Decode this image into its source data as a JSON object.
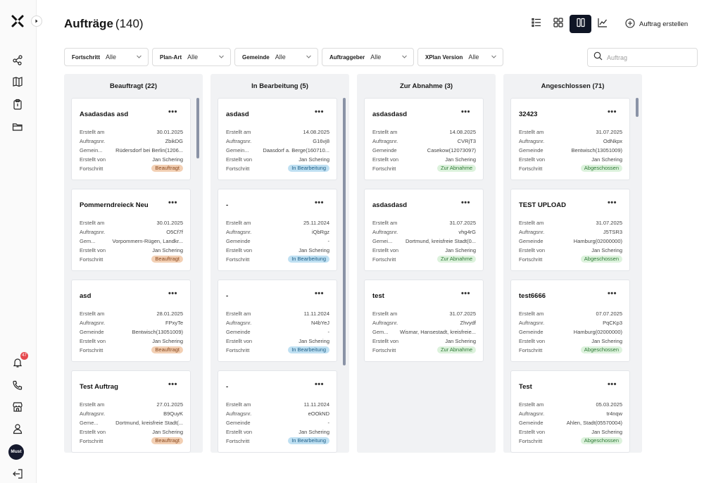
{
  "app": {
    "avatar_initials": "Must",
    "notification_count": "47"
  },
  "header": {
    "title": "Aufträge",
    "count": "(140)",
    "create_label": "Auftrag erstellen"
  },
  "search": {
    "placeholder": "Auftrag"
  },
  "filters": [
    {
      "label": "Fortschritt",
      "value": "Alle"
    },
    {
      "label": "Plan-Art",
      "value": "Alle"
    },
    {
      "label": "Gemeinde",
      "value": "Alle"
    },
    {
      "label": "Auftraggeber",
      "value": "Alle"
    },
    {
      "label": "XPlan Version",
      "value": "Alle"
    }
  ],
  "field_labels": {
    "created_at": "Erstellt am",
    "order_no": "Auftragsnr.",
    "municipality": "Gemeinde",
    "municipality_short1": "Gemein...",
    "municipality_short2": "Gem...",
    "created_by": "Erstellt von",
    "progress": "Fortschritt"
  },
  "columns": [
    {
      "title": "Beauftragt (22)",
      "cards": [
        {
          "title": "Asadasdas asd",
          "created_at": "30.01.2025",
          "order_no": "ZbikDG",
          "municipality_label": "Gemein...",
          "municipality": "Rüdersdorf bei Berlin(1206...",
          "created_by": "Jan Schering",
          "status": "Beauftragt"
        },
        {
          "title": "Pommerndreieck Neu",
          "created_at": "30.01.2025",
          "order_no": "O5Cf7f",
          "municipality_label": "Gem...",
          "municipality": "Vorpommern-Rügen, Landkr...",
          "created_by": "Jan Schering",
          "status": "Beauftragt"
        },
        {
          "title": "asd",
          "created_at": "28.01.2025",
          "order_no": "FPxyTe",
          "municipality_label": "Gemeinde",
          "municipality": "Bentwisch(13051009)",
          "created_by": "Jan Schering",
          "status": "Beauftragt"
        },
        {
          "title": "Test Auftrag",
          "created_at": "27.01.2025",
          "order_no": "B9QuyK",
          "municipality_label": "Geme...",
          "municipality": "Dortmund, kreisfreie Stadt(...",
          "created_by": "Jan Schering",
          "status": "Beauftragt"
        }
      ]
    },
    {
      "title": "In Bearbeitung (5)",
      "cards": [
        {
          "title": "asdasd",
          "created_at": "14.08.2025",
          "order_no": "G16vj8",
          "municipality_label": "Gemein...",
          "municipality": "Daasdorf a. Berge(160710...",
          "created_by": "Jan Schering",
          "status": "In Bearbeitung"
        },
        {
          "title": "-",
          "created_at": "25.11.2024",
          "order_no": "iQbRgz",
          "municipality_label": "Gemeinde",
          "municipality": "-",
          "created_by": "Jan Schering",
          "status": "In Bearbeitung"
        },
        {
          "title": "-",
          "created_at": "11.11.2024",
          "order_no": "N4bYeJ",
          "municipality_label": "Gemeinde",
          "municipality": "-",
          "created_by": "Jan Schering",
          "status": "In Bearbeitung"
        },
        {
          "title": "-",
          "created_at": "11.11.2024",
          "order_no": "eOOkND",
          "municipality_label": "Gemeinde",
          "municipality": "-",
          "created_by": "Jan Schering",
          "status": "In Bearbeitung"
        }
      ]
    },
    {
      "title": "Zur Abnahme (3)",
      "cards": [
        {
          "title": "asdasdasd",
          "created_at": "14.08.2025",
          "order_no": "CVRjT3",
          "municipality_label": "Gemeinde",
          "municipality": "Casekow(12073097)",
          "created_by": "Jan Schering",
          "status": "Zur Abnahme"
        },
        {
          "title": "asdasdasd",
          "created_at": "31.07.2025",
          "order_no": "vhg4rG",
          "municipality_label": "Gemei...",
          "municipality": "Dortmund, kreisfreie Stadt(0...",
          "created_by": "Jan Schering",
          "status": "Zur Abnahme"
        },
        {
          "title": "test",
          "created_at": "31.07.2025",
          "order_no": "Zhvydf",
          "municipality_label": "Gem...",
          "municipality": "Wismar, Hansestadt, kreisfreie...",
          "created_by": "Jan Schering",
          "status": "Zur Abnahme"
        }
      ]
    },
    {
      "title": "Angeschlossen (71)",
      "cards": [
        {
          "title": "32423",
          "created_at": "31.07.2025",
          "order_no": "OdNkpx",
          "municipality_label": "Gemeinde",
          "municipality": "Bentwisch(13051009)",
          "created_by": "Jan Schering",
          "status": "Abgeschossen"
        },
        {
          "title": "TEST UPLOAD",
          "created_at": "31.07.2025",
          "order_no": "J5TSR3",
          "municipality_label": "Gemeinde",
          "municipality": "Hamburg(02000000)",
          "created_by": "Jan Schering",
          "status": "Abgeschossen"
        },
        {
          "title": "test6666",
          "created_at": "07.07.2025",
          "order_no": "PqCKp3",
          "municipality_label": "Gemeinde",
          "municipality": "Hamburg(02000000)",
          "created_by": "Jan Schering",
          "status": "Abgeschossen"
        },
        {
          "title": "Test",
          "created_at": "05.03.2025",
          "order_no": "tr4nqw",
          "municipality_label": "Gemeinde",
          "municipality": "Ahlen, Stadt(05570004)",
          "created_by": "Jan Schering",
          "status": "Abgeschossen"
        }
      ]
    }
  ],
  "icons": {
    "logo": "logo-icon",
    "nav": [
      "share-nodes-icon",
      "map-icon",
      "clipboard-icon",
      "folder-icon"
    ],
    "bottom": [
      "bell-icon",
      "phone-icon",
      "store-icon",
      "user-icon",
      "logout-icon"
    ]
  },
  "colors": {
    "beauftragt_bg": "#f2cfb3",
    "inbearbeitung_bg": "#bfe0f2",
    "abnahme_bg": "#dcf2dc",
    "active_view": "#0f1525",
    "column_bg": "#f1f2f4"
  }
}
